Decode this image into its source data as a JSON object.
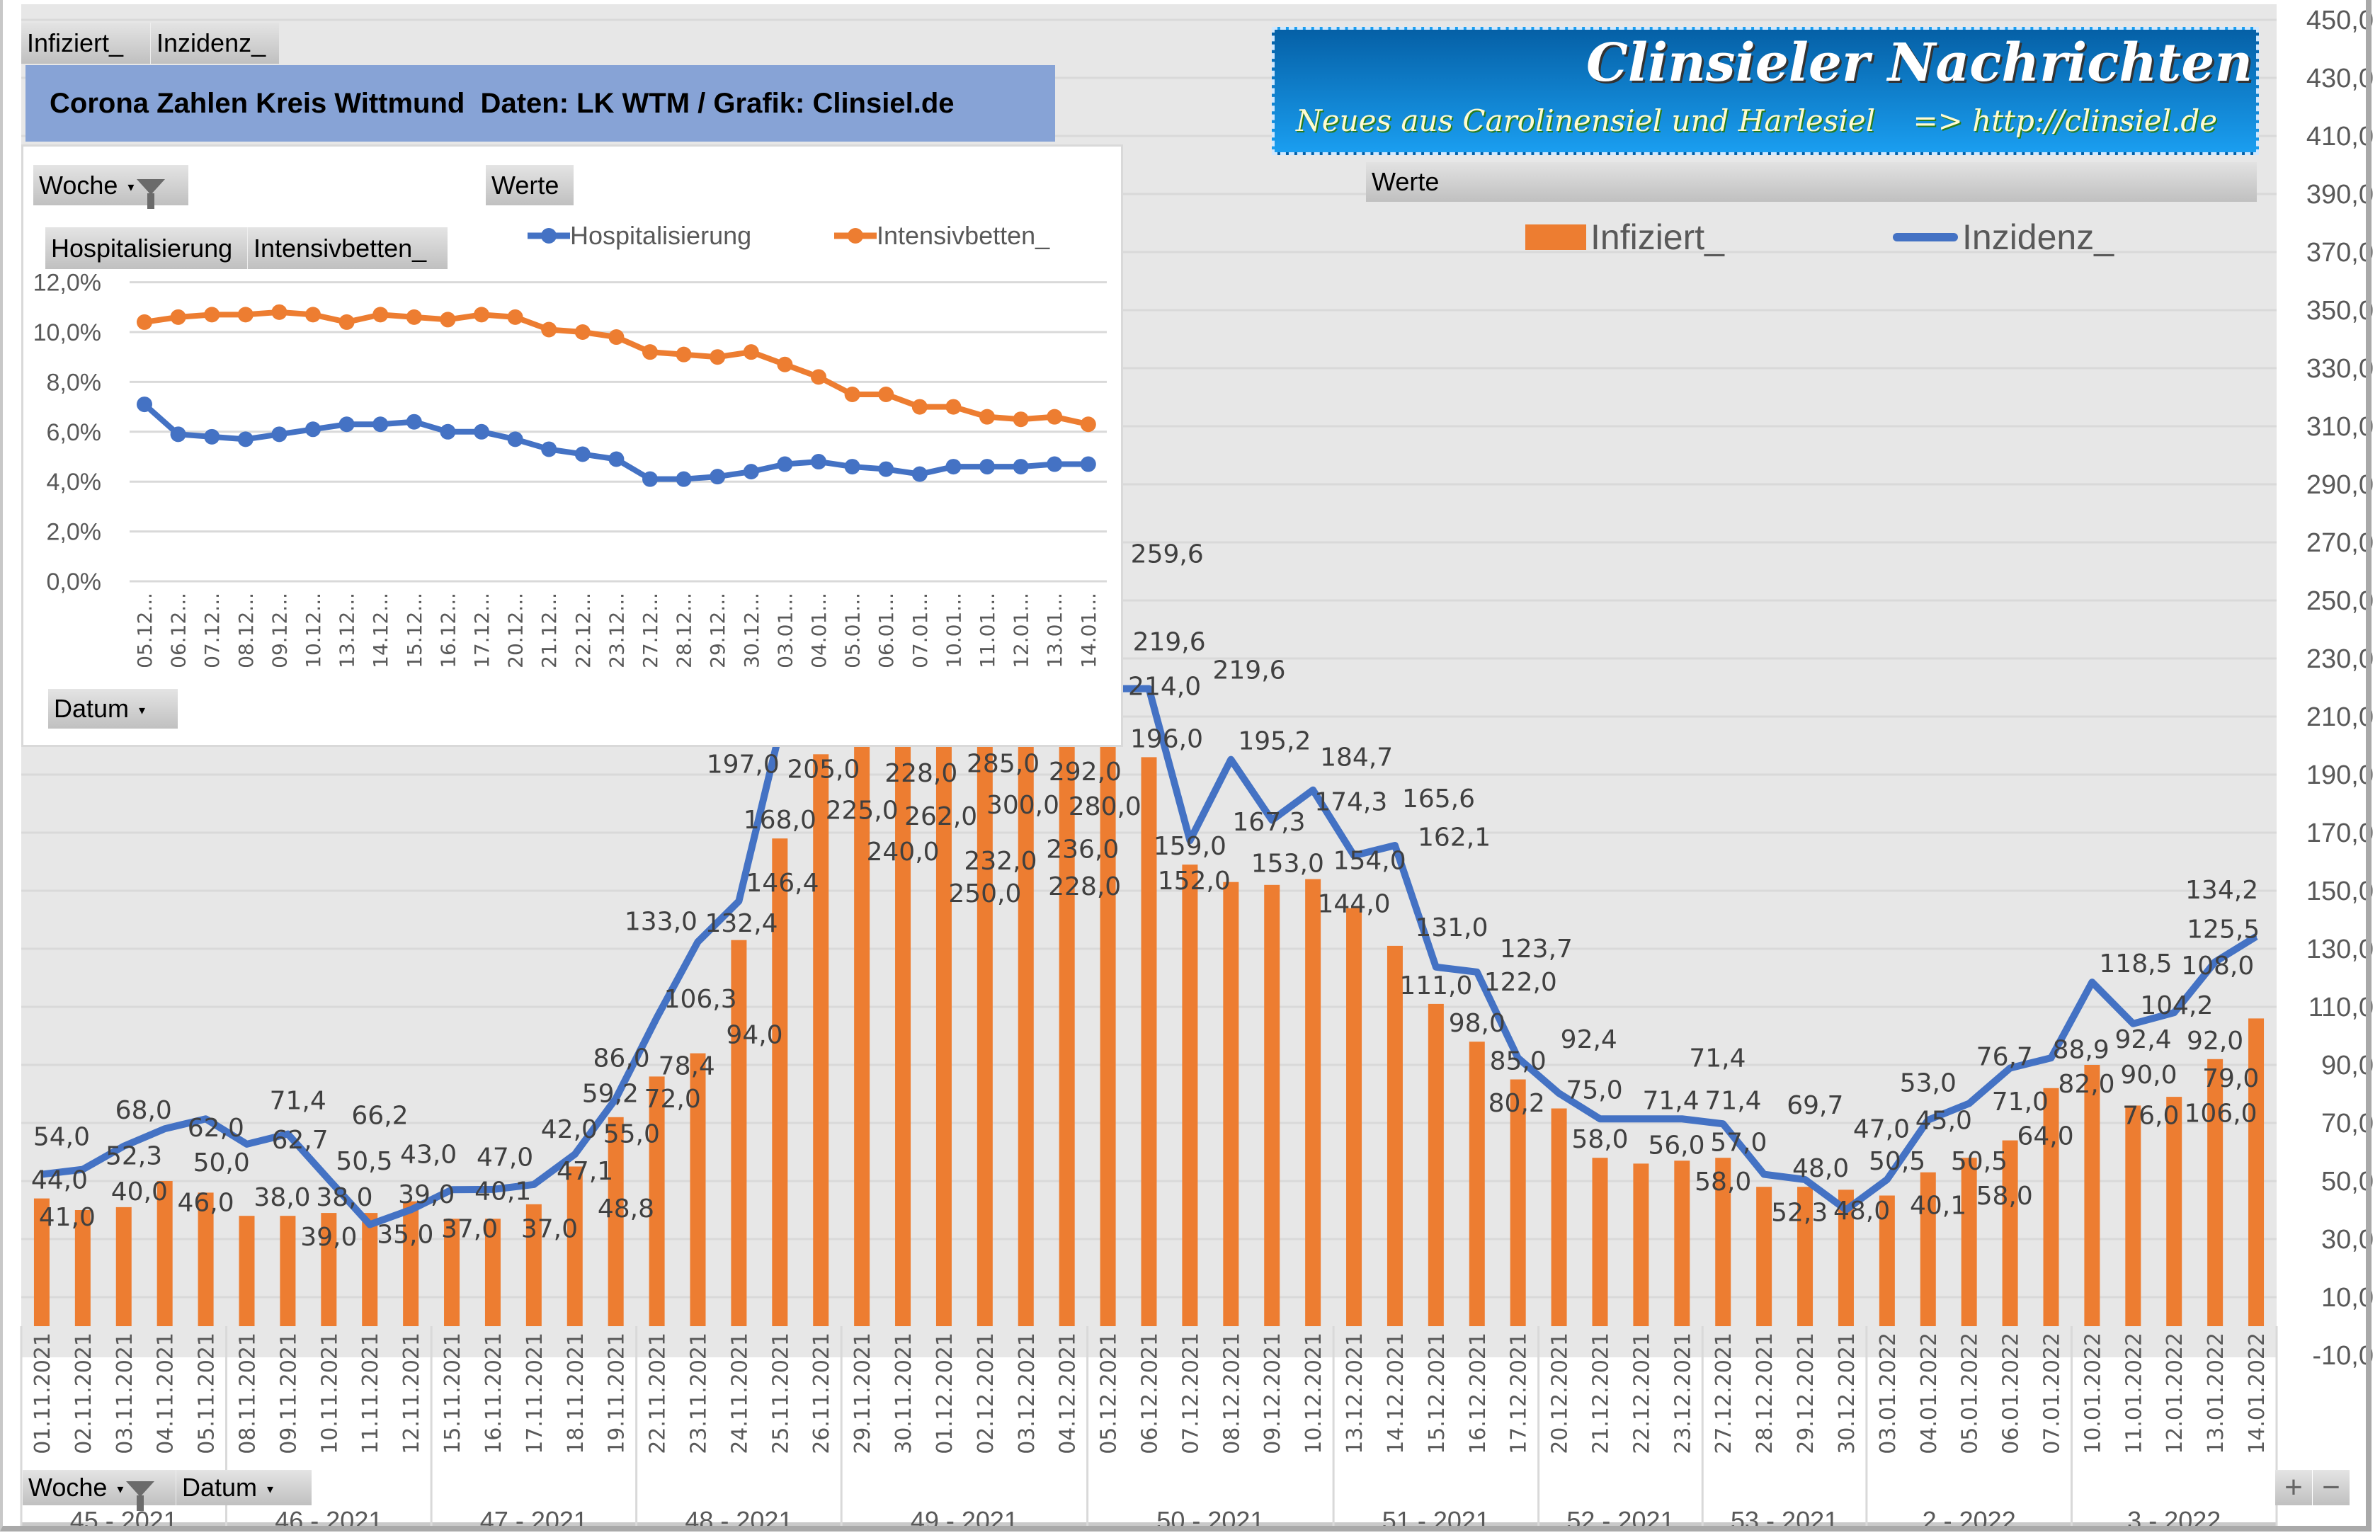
{
  "top_buttons": {
    "infiziert": "Infiziert_",
    "inzidenz": "Inzidenz_"
  },
  "title": "Corona Zahlen Kreis Wittmund  Daten: LK WTM / Grafik: Clinsiel.de",
  "logo": {
    "title": "Clinsieler Nachrichten",
    "subtitle": "Neues aus Carolinensiel und Harlesiel    => http://clinsiel.de"
  },
  "werte_label": "Werte",
  "bottom_buttons": {
    "woche": "Woche",
    "datum": "Datum",
    "plus": "+",
    "minus": "−"
  },
  "colors": {
    "orange": "#ed7d31",
    "blue": "#4472c4",
    "plot_bg": "#e7e7e7",
    "title_bg": "#87a3d6"
  },
  "inset_ui": {
    "woche": "Woche",
    "werte": "Werte",
    "hospitalisierung": "Hospitalisierung",
    "intensivbetten": "Intensivbetten_",
    "datum": "Datum"
  },
  "chart_data": [
    {
      "type": "bar+line",
      "title": "",
      "legend": [
        "Infiziert_",
        "Inzidenz_"
      ],
      "legend_placement": "top-right",
      "ylim": [
        -10,
        450
      ],
      "yticks": [
        -10,
        10,
        30,
        50,
        70,
        90,
        110,
        130,
        150,
        170,
        190,
        210,
        230,
        250,
        270,
        290,
        310,
        330,
        350,
        370,
        390,
        410,
        430,
        450
      ],
      "x": [
        "01.11.2021",
        "02.11.2021",
        "03.11.2021",
        "04.11.2021",
        "05.11.2021",
        "08.11.2021",
        "09.11.2021",
        "10.11.2021",
        "11.11.2021",
        "12.11.2021",
        "15.11.2021",
        "16.11.2021",
        "17.11.2021",
        "18.11.2021",
        "19.11.2021",
        "22.11.2021",
        "23.11.2021",
        "24.11.2021",
        "25.11.2021",
        "26.11.2021",
        "29.11.2021",
        "30.11.2021",
        "01.12.2021",
        "02.12.2021",
        "03.12.2021",
        "04.12.2021",
        "05.12.2021",
        "06.12.2021",
        "07.12.2021",
        "08.12.2021",
        "09.12.2021",
        "10.12.2021",
        "13.12.2021",
        "14.12.2021",
        "15.12.2021",
        "16.12.2021",
        "17.12.2021",
        "20.12.2021",
        "21.12.2021",
        "22.12.2021",
        "23.12.2021",
        "27.12.2021",
        "28.12.2021",
        "29.12.2021",
        "30.12.2021",
        "03.01.2022",
        "04.01.2022",
        "05.01.2022",
        "06.01.2022",
        "07.01.2022",
        "10.01.2022",
        "11.01.2022",
        "12.01.2022",
        "13.01.2022",
        "14.01.2022"
      ],
      "weeks": [
        {
          "label": "45 - 2021",
          "count": 5
        },
        {
          "label": "46 - 2021",
          "count": 5
        },
        {
          "label": "47 - 2021",
          "count": 5
        },
        {
          "label": "48 - 2021",
          "count": 5
        },
        {
          "label": "49 - 2021",
          "count": 6
        },
        {
          "label": "50 - 2021",
          "count": 6
        },
        {
          "label": "51 - 2021",
          "count": 5
        },
        {
          "label": "52 - 2021",
          "count": 4
        },
        {
          "label": "53 - 2021",
          "count": 4
        },
        {
          "label": "2 - 2022",
          "count": 5
        },
        {
          "label": "3 - 2022",
          "count": 5
        }
      ],
      "series": [
        {
          "name": "Infiziert_",
          "kind": "bar",
          "values": [
            44,
            40,
            41,
            50,
            46,
            38,
            38,
            39,
            39,
            43,
            37,
            37,
            42,
            55,
            72,
            86,
            94,
            133,
            168,
            197,
            225,
            240,
            232,
            250,
            236,
            228,
            214,
            196,
            159,
            153,
            152,
            154,
            144,
            131,
            111,
            98,
            85,
            75,
            58,
            56,
            57,
            58,
            48,
            48,
            47,
            45,
            53,
            58,
            64,
            82,
            90,
            76,
            79,
            92,
            106
          ]
        },
        {
          "name": "Inzidenz_",
          "kind": "line",
          "values": [
            52.3,
            54.0,
            62.0,
            68.0,
            71.4,
            62.7,
            66.2,
            50.5,
            35.0,
            40.1,
            47.0,
            47.1,
            48.8,
            59.2,
            78.4,
            106.3,
            132.4,
            146.4,
            205.0,
            228.0,
            262.0,
            285.0,
            300.0,
            292.0,
            280.0,
            259.6,
            219.6,
            219.6,
            167.3,
            195.2,
            174.3,
            184.7,
            162.1,
            165.6,
            123.7,
            122.0,
            92.4,
            80.2,
            71.4,
            71.4,
            71.4,
            69.7,
            52.3,
            50.5,
            40.1,
            50.5,
            71.0,
            76.7,
            88.9,
            92.4,
            118.5,
            104.2,
            108.0,
            125.5,
            134.2
          ]
        }
      ]
    },
    {
      "type": "line",
      "title": "",
      "legend": [
        "Hospitalisierung",
        "Intensivbetten_"
      ],
      "legend_placement": "top",
      "ylim": [
        0,
        12
      ],
      "yticks": [
        "0,0%",
        "2,0%",
        "4,0%",
        "6,0%",
        "8,0%",
        "10,0%",
        "12,0%"
      ],
      "x": [
        "05.12...",
        "06.12...",
        "07.12...",
        "08.12...",
        "09.12...",
        "10.12...",
        "13.12...",
        "14.12...",
        "15.12...",
        "16.12...",
        "17.12...",
        "20.12...",
        "21.12...",
        "22.12...",
        "23.12...",
        "27.12...",
        "28.12...",
        "29.12...",
        "30.12...",
        "03.01...",
        "04.01...",
        "05.01...",
        "06.01...",
        "07.01...",
        "10.01...",
        "11.01...",
        "12.01...",
        "13.01...",
        "14.01..."
      ],
      "series": [
        {
          "name": "Hospitalisierung",
          "values": [
            7.1,
            5.9,
            5.8,
            5.7,
            5.9,
            6.1,
            6.3,
            6.3,
            6.4,
            6.0,
            6.0,
            5.7,
            5.3,
            5.1,
            4.9,
            4.1,
            4.1,
            4.2,
            4.4,
            4.7,
            4.8,
            4.6,
            4.5,
            4.3,
            4.6,
            4.6,
            4.6,
            4.7,
            4.7
          ]
        },
        {
          "name": "Intensivbetten_",
          "values": [
            10.4,
            10.6,
            10.7,
            10.7,
            10.8,
            10.7,
            10.4,
            10.7,
            10.6,
            10.5,
            10.7,
            10.6,
            10.1,
            10.0,
            9.8,
            9.2,
            9.1,
            9.0,
            9.2,
            8.7,
            8.2,
            7.5,
            7.5,
            7.0,
            7.0,
            6.6,
            6.5,
            6.6,
            6.3
          ]
        }
      ]
    }
  ]
}
